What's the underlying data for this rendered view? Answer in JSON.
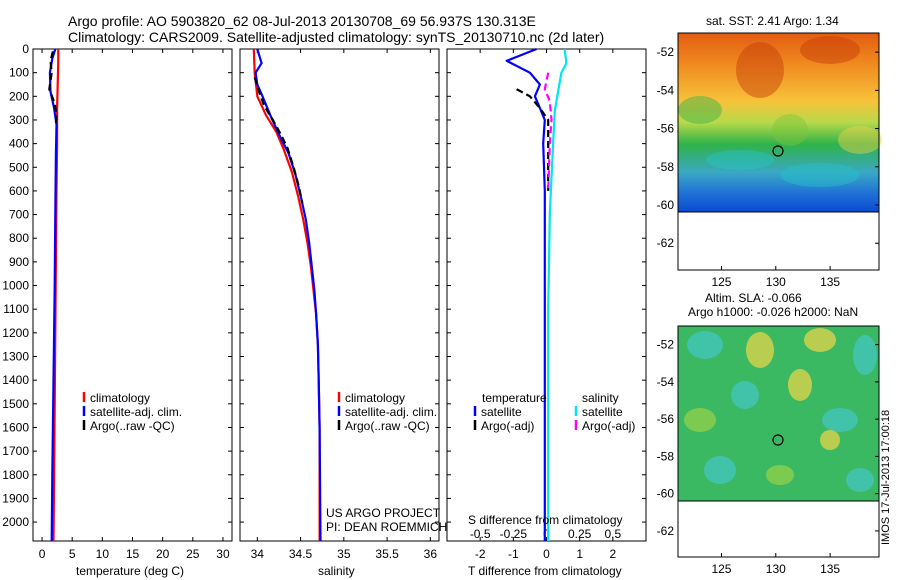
{
  "header": {
    "line1": "Argo profile: AO 5903820_62 08-Jul-2013 20130708_69 56.937S 130.313E",
    "line2": "Climatology: CARS2009. Satellite-adjusted climatology: synTS_20130710.nc (2d later)"
  },
  "colors": {
    "climatology": "#ff0000",
    "satellite": "#0000ff",
    "argo": "#000000",
    "sal_satellite": "#00e5ee",
    "sal_argo": "#ff00ff"
  },
  "chart_data": [
    {
      "type": "line",
      "id": "temperature",
      "xlabel": "temperature (deg C)",
      "ylabel": "",
      "xlim": [
        -1.5,
        31.5
      ],
      "ylim": [
        2080,
        0
      ],
      "xticks": [
        0,
        5,
        10,
        15,
        20,
        25,
        30
      ],
      "yticks": [
        0,
        100,
        200,
        300,
        400,
        500,
        600,
        700,
        800,
        900,
        1000,
        1100,
        1200,
        1300,
        1400,
        1500,
        1600,
        1700,
        1800,
        1900,
        2000
      ],
      "legend": [
        "climatology",
        "satellite-adj. clim.",
        "Argo(..raw -QC)"
      ],
      "series": [
        {
          "name": "climatology",
          "color": "#ff0000",
          "dash": false,
          "points": [
            [
              2.7,
              0
            ],
            [
              2.7,
              50
            ],
            [
              2.6,
              150
            ],
            [
              2.5,
              250
            ],
            [
              2.5,
              300
            ],
            [
              2.5,
              400
            ],
            [
              2.4,
              600
            ],
            [
              2.3,
              900
            ],
            [
              2.2,
              1200
            ],
            [
              2.1,
              1500
            ],
            [
              2.0,
              1800
            ],
            [
              1.9,
              2080
            ]
          ]
        },
        {
          "name": "satellite-adj. clim.",
          "color": "#0000ff",
          "dash": false,
          "points": [
            [
              2.2,
              0
            ],
            [
              1.7,
              40
            ],
            [
              1.3,
              100
            ],
            [
              1.4,
              180
            ],
            [
              2.0,
              250
            ],
            [
              2.4,
              320
            ],
            [
              2.3,
              450
            ],
            [
              2.2,
              700
            ],
            [
              2.1,
              1000
            ],
            [
              1.9,
              1400
            ],
            [
              1.7,
              1800
            ],
            [
              1.6,
              2080
            ]
          ]
        },
        {
          "name": "Argo(..raw -QC)",
          "color": "#000000",
          "dash": true,
          "points": [
            [
              1.8,
              10
            ],
            [
              1.4,
              50
            ],
            [
              1.6,
              100
            ],
            [
              1.2,
              170
            ],
            [
              2.1,
              230
            ],
            [
              2.4,
              280
            ],
            [
              2.3,
              320
            ]
          ]
        }
      ]
    },
    {
      "type": "line",
      "id": "salinity",
      "xlabel": "salinity",
      "ylabel": "",
      "xlim": [
        33.8,
        36.1
      ],
      "ylim": [
        2080,
        0
      ],
      "xticks": [
        34,
        34.5,
        35,
        35.5,
        36
      ],
      "legend": [
        "climatology",
        "satellite-adj. clim.",
        "Argo(..raw -QC)"
      ],
      "annotation": [
        "US ARGO PROJECT",
        "PI: DEAN ROEMMICH"
      ],
      "series": [
        {
          "name": "climatology",
          "color": "#ff0000",
          "dash": false,
          "points": [
            [
              33.96,
              0
            ],
            [
              33.97,
              100
            ],
            [
              34.0,
              200
            ],
            [
              34.1,
              280
            ],
            [
              34.22,
              350
            ],
            [
              34.3,
              420
            ],
            [
              34.4,
              520
            ],
            [
              34.47,
              620
            ],
            [
              34.53,
              720
            ],
            [
              34.58,
              820
            ],
            [
              34.62,
              920
            ],
            [
              34.65,
              1020
            ],
            [
              34.68,
              1120
            ],
            [
              34.7,
              1250
            ],
            [
              34.71,
              1400
            ],
            [
              34.72,
              1600
            ],
            [
              34.72,
              2080
            ]
          ]
        },
        {
          "name": "satellite-adj. clim.",
          "color": "#0000ff",
          "dash": false,
          "points": [
            [
              34.0,
              0
            ],
            [
              34.05,
              60
            ],
            [
              33.98,
              100
            ],
            [
              34.0,
              150
            ],
            [
              34.06,
              200
            ],
            [
              34.15,
              280
            ],
            [
              34.25,
              360
            ],
            [
              34.36,
              440
            ],
            [
              34.44,
              530
            ],
            [
              34.5,
              620
            ],
            [
              34.56,
              720
            ],
            [
              34.6,
              820
            ],
            [
              34.63,
              920
            ],
            [
              34.66,
              1020
            ],
            [
              34.68,
              1120
            ],
            [
              34.7,
              1250
            ],
            [
              34.71,
              1400
            ],
            [
              34.72,
              1600
            ],
            [
              34.73,
              2080
            ]
          ]
        },
        {
          "name": "Argo(..raw -QC)",
          "color": "#000000",
          "dash": true,
          "points": [
            [
              33.97,
              120
            ],
            [
              34.02,
              180
            ],
            [
              34.08,
              240
            ],
            [
              34.18,
              300
            ],
            [
              34.27,
              360
            ],
            [
              34.35,
              420
            ],
            [
              34.42,
              500
            ],
            [
              34.48,
              580
            ],
            [
              34.52,
              650
            ]
          ]
        }
      ]
    },
    {
      "type": "line",
      "id": "differences",
      "xlabel": "T difference from climatology",
      "xlabel_top": "S difference from climatology",
      "ylabel": "",
      "xlim": [
        -3,
        3
      ],
      "ylim": [
        2080,
        0
      ],
      "xticks": [
        -2,
        -1,
        0,
        1,
        2
      ],
      "sticks": [
        -0.5,
        -0.25,
        0,
        0.25,
        0.5
      ],
      "legend_titles": [
        "temperature",
        "salinity"
      ],
      "legend_left": [
        "satellite",
        "Argo(-adj)"
      ],
      "legend_right": [
        "satellite",
        "Argo(-adj)"
      ],
      "series": [
        {
          "name": "T satellite",
          "color": "#0000ff",
          "dash": false,
          "points": [
            [
              -0.3,
              0
            ],
            [
              -1.2,
              50
            ],
            [
              -0.5,
              100
            ],
            [
              -0.2,
              150
            ],
            [
              -0.35,
              200
            ],
            [
              -0.2,
              250
            ],
            [
              -0.05,
              300
            ],
            [
              -0.1,
              400
            ],
            [
              -0.05,
              600
            ],
            [
              -0.05,
              900
            ],
            [
              -0.05,
              1200
            ],
            [
              -0.05,
              1500
            ],
            [
              -0.05,
              1800
            ],
            [
              -0.05,
              2080
            ]
          ]
        },
        {
          "name": "T Argo(-adj)",
          "color": "#000000",
          "dash": true,
          "points": [
            [
              -0.9,
              170
            ],
            [
              -0.5,
              200
            ],
            [
              -0.2,
              250
            ],
            [
              0.05,
              300
            ],
            [
              0.05,
              400
            ],
            [
              0.05,
              600
            ]
          ]
        },
        {
          "name": "S satellite",
          "color": "#00e5ee",
          "dash": false,
          "points": [
            [
              0.55,
              0
            ],
            [
              0.6,
              60
            ],
            [
              0.45,
              100
            ],
            [
              0.35,
              180
            ],
            [
              0.25,
              260
            ],
            [
              0.2,
              400
            ],
            [
              0.1,
              700
            ],
            [
              0.05,
              1100
            ],
            [
              0.05,
              1500
            ],
            [
              0.05,
              2080
            ]
          ]
        },
        {
          "name": "S Argo(-adj)",
          "color": "#ff00ff",
          "dash": true,
          "points": [
            [
              0.05,
              100
            ],
            [
              -0.05,
              170
            ],
            [
              0.1,
              220
            ],
            [
              0.15,
              300
            ],
            [
              0.1,
              400
            ],
            [
              0.05,
              600
            ]
          ]
        }
      ]
    }
  ],
  "maps": [
    {
      "title": "sat. SST: 2.41  Argo: 1.34",
      "xticks": [
        "125",
        "130",
        "135"
      ],
      "yticks": [
        "-52",
        "-54",
        "-56",
        "-58",
        "-60",
        "-62"
      ]
    },
    {
      "title1": "Altim. SLA: -0.066",
      "title2": "Argo h1000: -0.026 h2000: NaN",
      "xticks": [
        "125",
        "130",
        "135"
      ],
      "yticks": [
        "-52",
        "-54",
        "-56",
        "-58",
        "-60",
        "-62"
      ]
    }
  ],
  "timestamp": "IMOS 17-Jul-2013 17:00:18"
}
